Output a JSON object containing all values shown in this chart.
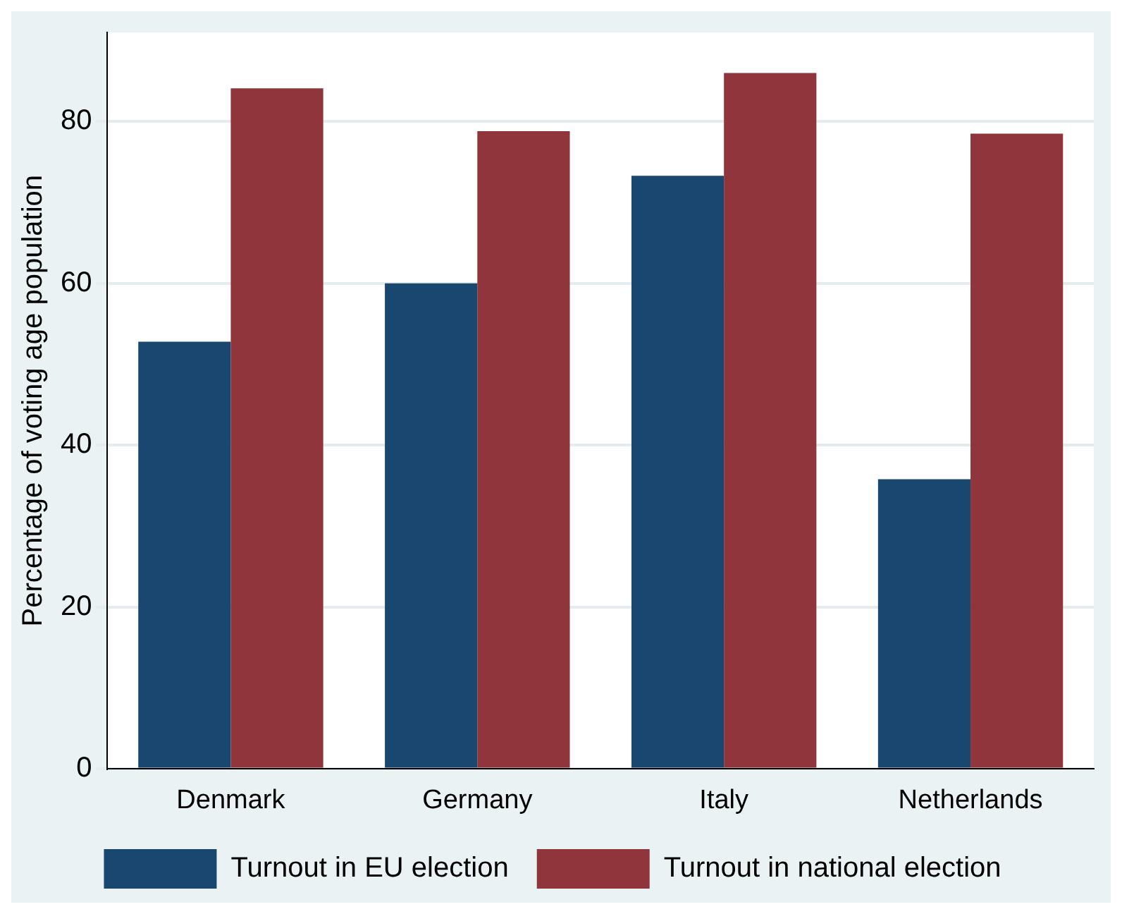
{
  "chart_data": {
    "type": "bar",
    "ylabel": "Percentage of voting age population",
    "categories": [
      "Denmark",
      "Germany",
      "Italy",
      "Netherlands"
    ],
    "series": [
      {
        "name": "Turnout in EU election",
        "color": "#1a476f",
        "values": [
          52.8,
          60.0,
          73.3,
          35.8
        ]
      },
      {
        "name": "Turnout in national election",
        "color": "#90353b",
        "values": [
          84.1,
          78.8,
          86.0,
          78.5
        ]
      }
    ],
    "ylim": [
      0,
      91
    ],
    "yticks": [
      0,
      20,
      40,
      60,
      80
    ],
    "grid": "y",
    "legend": "bottom"
  }
}
